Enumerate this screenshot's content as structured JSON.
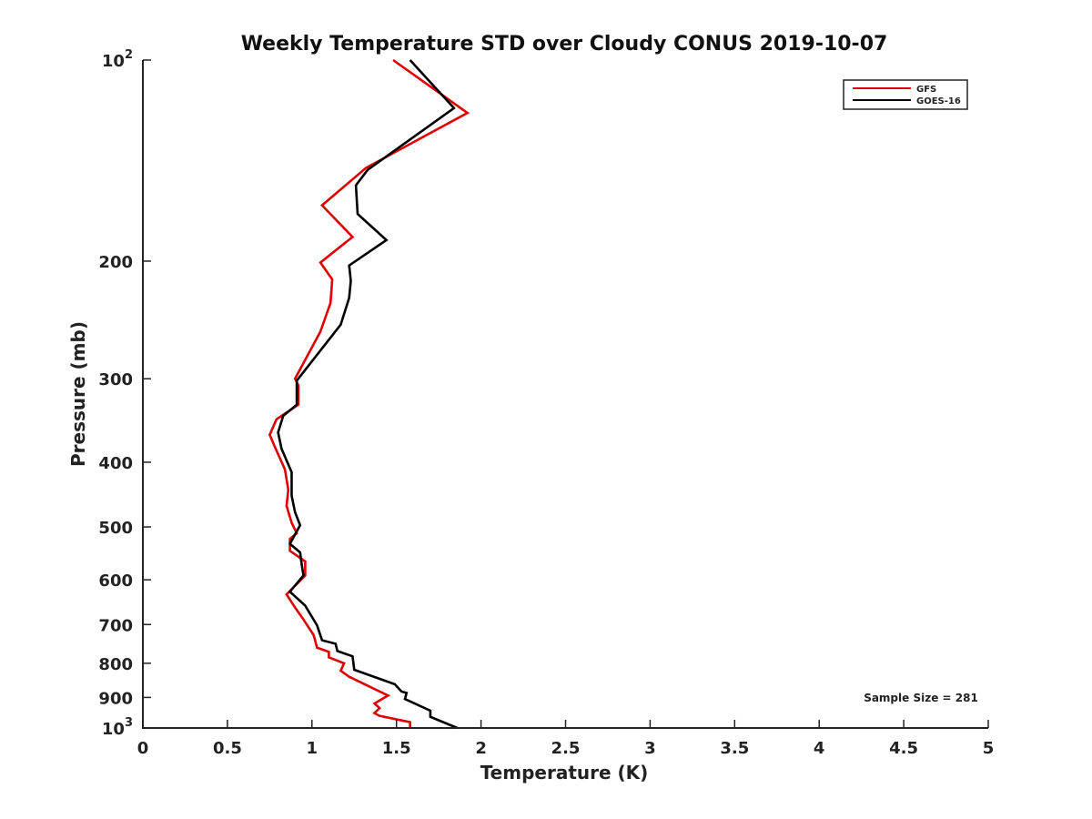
{
  "chart_data": {
    "type": "line",
    "title": "Weekly Temperature STD over Cloudy CONUS 2019-10-07",
    "xlabel": "Temperature (K)",
    "ylabel": "Pressure (mb)",
    "xlim": [
      0,
      5
    ],
    "ylim": [
      100,
      1000
    ],
    "yscale": "log",
    "y_reversed": true,
    "grid": false,
    "legend_position": "top-right",
    "xticks": [
      0,
      0.5,
      1,
      1.5,
      2,
      2.5,
      3,
      3.5,
      4,
      4.5,
      5
    ],
    "xtick_labels": [
      "0",
      "0.5",
      "1",
      "1.5",
      "2",
      "2.5",
      "3",
      "3.5",
      "4",
      "4.5",
      "5"
    ],
    "yticks": [
      {
        "value": 100,
        "base": "10",
        "exp": "2"
      },
      {
        "value": 200,
        "label": "200"
      },
      {
        "value": 300,
        "label": "300"
      },
      {
        "value": 400,
        "label": "400"
      },
      {
        "value": 500,
        "label": "500"
      },
      {
        "value": 600,
        "label": "600"
      },
      {
        "value": 700,
        "label": "700"
      },
      {
        "value": 800,
        "label": "800"
      },
      {
        "value": 900,
        "label": "900"
      },
      {
        "value": 1000,
        "base": "10",
        "exp": "3"
      }
    ],
    "annotation": "Sample Size = 281",
    "series": [
      {
        "name": "GFS",
        "color": "#e00000",
        "points": [
          [
            1.48,
            100
          ],
          [
            1.92,
            120
          ],
          [
            1.32,
            145
          ],
          [
            1.06,
            165
          ],
          [
            1.24,
            184
          ],
          [
            1.05,
            201
          ],
          [
            1.12,
            213
          ],
          [
            1.11,
            231
          ],
          [
            1.05,
            255
          ],
          [
            0.9,
            300
          ],
          [
            0.92,
            307
          ],
          [
            0.92,
            328
          ],
          [
            0.79,
            345
          ],
          [
            0.75,
            364
          ],
          [
            0.78,
            379
          ],
          [
            0.84,
            410
          ],
          [
            0.86,
            440
          ],
          [
            0.85,
            465
          ],
          [
            0.88,
            493
          ],
          [
            0.91,
            511
          ],
          [
            0.87,
            521
          ],
          [
            0.87,
            543
          ],
          [
            0.96,
            563
          ],
          [
            0.96,
            591
          ],
          [
            0.85,
            631
          ],
          [
            0.9,
            660
          ],
          [
            0.95,
            688
          ],
          [
            1.01,
            726
          ],
          [
            1.03,
            758
          ],
          [
            1.1,
            769
          ],
          [
            1.1,
            784
          ],
          [
            1.19,
            800
          ],
          [
            1.17,
            821
          ],
          [
            1.22,
            838
          ],
          [
            1.45,
            894
          ],
          [
            1.37,
            919
          ],
          [
            1.4,
            934
          ],
          [
            1.37,
            950
          ],
          [
            1.4,
            959
          ],
          [
            1.58,
            980
          ],
          [
            1.58,
            1000
          ]
        ]
      },
      {
        "name": "GOES-16",
        "color": "#000000",
        "points": [
          [
            1.58,
            100
          ],
          [
            1.84,
            118
          ],
          [
            1.33,
            146
          ],
          [
            1.26,
            154
          ],
          [
            1.27,
            170
          ],
          [
            1.44,
            186
          ],
          [
            1.22,
            203
          ],
          [
            1.23,
            214
          ],
          [
            1.22,
            227
          ],
          [
            1.17,
            249
          ],
          [
            0.91,
            302
          ],
          [
            0.91,
            328
          ],
          [
            0.83,
            341
          ],
          [
            0.8,
            361
          ],
          [
            0.82,
            382
          ],
          [
            0.88,
            414
          ],
          [
            0.88,
            449
          ],
          [
            0.9,
            475
          ],
          [
            0.93,
            497
          ],
          [
            0.87,
            530
          ],
          [
            0.93,
            546
          ],
          [
            0.94,
            571
          ],
          [
            0.95,
            591
          ],
          [
            0.87,
            625
          ],
          [
            0.96,
            656
          ],
          [
            1.03,
            702
          ],
          [
            1.06,
            739
          ],
          [
            1.14,
            748
          ],
          [
            1.15,
            767
          ],
          [
            1.24,
            781
          ],
          [
            1.25,
            818
          ],
          [
            1.49,
            860
          ],
          [
            1.53,
            882
          ],
          [
            1.56,
            886
          ],
          [
            1.55,
            905
          ],
          [
            1.7,
            942
          ],
          [
            1.7,
            962
          ],
          [
            1.86,
            1000
          ]
        ]
      }
    ]
  }
}
